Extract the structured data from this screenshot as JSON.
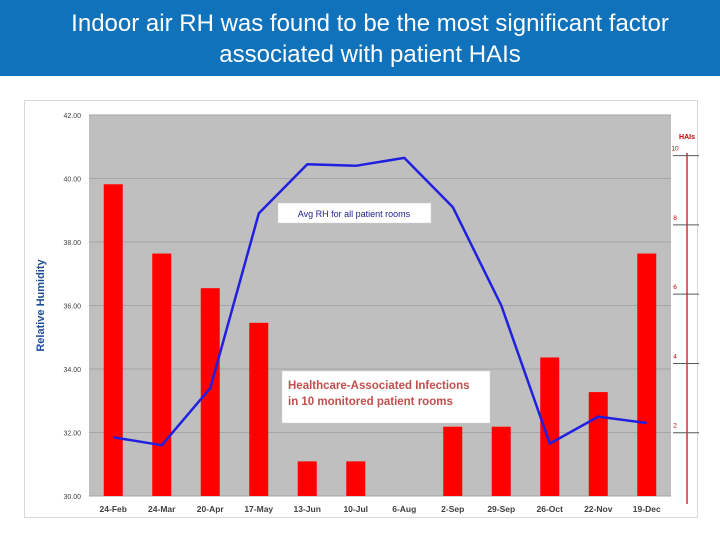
{
  "header": {
    "title": "Indoor air RH was found to be the most significant factor associated with patient HAIs"
  },
  "colors": {
    "header_bg": "#0f72bb",
    "plot_bg": "#bfbfbf",
    "bar": "#ff0000",
    "line": "#2020e0",
    "axis_label": "#1f4e9b",
    "annotation_text": "#c0504d",
    "right_axis": "#c00000"
  },
  "chart_data": {
    "type": "bar",
    "categories": [
      "24-Feb",
      "24-Mar",
      "20-Apr",
      "17-May",
      "13-Jun",
      "10-Jul",
      "6-Aug",
      "2-Sep",
      "29-Sep",
      "26-Oct",
      "22-Nov",
      "19-Dec"
    ],
    "ylabel": "Relative Humidity",
    "ylim": [
      30,
      42
    ],
    "yticks": [
      "30.00",
      "32.00",
      "34.00",
      "36.00",
      "38.00",
      "40.00",
      "42.00"
    ],
    "y2label": "HAIs",
    "y2lim": [
      0,
      11
    ],
    "y2ticks": [
      "2",
      "4",
      "6",
      "8",
      "10"
    ],
    "grid": "horizontal",
    "series": [
      {
        "name": "Healthcare-Associated Infections in 10 monitored patient rooms",
        "kind": "bar",
        "axis": "right",
        "values": [
          9,
          7,
          6,
          5,
          1,
          1,
          0,
          2,
          2,
          4,
          3,
          7
        ]
      },
      {
        "name": "Avg RH for all patient rooms",
        "kind": "line",
        "axis": "left",
        "values": [
          31.85,
          31.6,
          33.4,
          38.9,
          40.45,
          40.4,
          40.65,
          39.1,
          36.0,
          31.65,
          32.5,
          32.3
        ]
      }
    ],
    "annotations": [
      {
        "text": "Avg RH for all patient rooms"
      },
      {
        "lines": [
          "Healthcare-Associated Infections",
          "in 10 monitored patient rooms"
        ]
      }
    ]
  }
}
